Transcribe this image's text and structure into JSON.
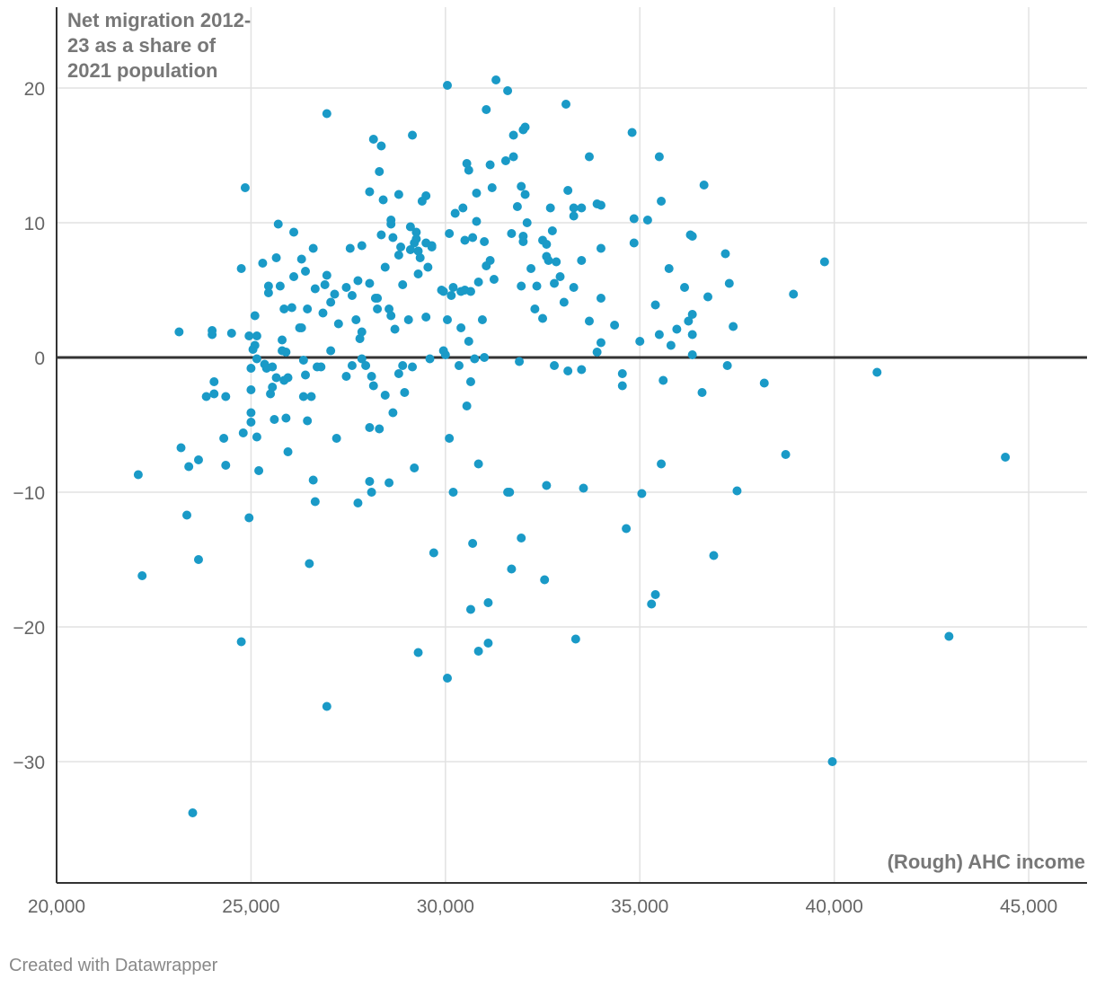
{
  "chart_data": {
    "type": "scatter",
    "ylabel_lines": [
      "Net migration 2012-",
      "23 as a share of",
      "2021 population"
    ],
    "xlabel": "(Rough) AHC income",
    "xlim": [
      20000,
      46500
    ],
    "ylim": [
      -39,
      26
    ],
    "x_ticks": [
      20000,
      25000,
      30000,
      35000,
      40000,
      45000
    ],
    "x_tick_labels": [
      "20,000",
      "25,000",
      "30,000",
      "35,000",
      "40,000",
      "45,000"
    ],
    "y_ticks": [
      20,
      10,
      0,
      -10,
      -20,
      -30
    ],
    "y_tick_labels": [
      "20",
      "10",
      "0",
      "−10",
      "−20",
      "−30"
    ],
    "point_color": "#1a9ac7",
    "zero_line_color": "#333333",
    "points": [
      [
        22100,
        -8.7
      ],
      [
        22200,
        -16.2
      ],
      [
        23150,
        1.9
      ],
      [
        23200,
        -6.7
      ],
      [
        23350,
        -11.7
      ],
      [
        23400,
        -8.1
      ],
      [
        23500,
        -33.8
      ],
      [
        23650,
        -15
      ],
      [
        23650,
        -7.6
      ],
      [
        23850,
        -2.9
      ],
      [
        24000,
        2
      ],
      [
        24000,
        1.7
      ],
      [
        24050,
        -2.7
      ],
      [
        24050,
        -1.8
      ],
      [
        24300,
        -6
      ],
      [
        24350,
        -8
      ],
      [
        24350,
        -2.9
      ],
      [
        24500,
        1.8
      ],
      [
        24750,
        6.6
      ],
      [
        24750,
        -21.1
      ],
      [
        24800,
        -5.6
      ],
      [
        24850,
        12.6
      ],
      [
        24950,
        -11.9
      ],
      [
        24950,
        1.6
      ],
      [
        25000,
        -0.8
      ],
      [
        25000,
        -2.4
      ],
      [
        25000,
        -4.1
      ],
      [
        25000,
        -4.8
      ],
      [
        25050,
        0.6
      ],
      [
        25100,
        0.9
      ],
      [
        25100,
        3.1
      ],
      [
        25150,
        -5.9
      ],
      [
        25150,
        -0.1
      ],
      [
        25150,
        1.6
      ],
      [
        25200,
        -8.4
      ],
      [
        25300,
        7
      ],
      [
        25350,
        -0.5
      ],
      [
        25400,
        -0.8
      ],
      [
        25450,
        5.3
      ],
      [
        25450,
        4.8
      ],
      [
        25500,
        -2.7
      ],
      [
        25550,
        -2.2
      ],
      [
        25550,
        -0.7
      ],
      [
        25600,
        -4.6
      ],
      [
        25650,
        -1.5
      ],
      [
        25650,
        7.4
      ],
      [
        25700,
        9.9
      ],
      [
        25750,
        5.3
      ],
      [
        25800,
        1.3
      ],
      [
        25800,
        0.5
      ],
      [
        25850,
        -1.7
      ],
      [
        25850,
        3.6
      ],
      [
        25900,
        -4.5
      ],
      [
        25900,
        0.4
      ],
      [
        25950,
        -7
      ],
      [
        25950,
        -1.5
      ],
      [
        26050,
        3.7
      ],
      [
        26100,
        9.3
      ],
      [
        26100,
        6
      ],
      [
        26250,
        2.2
      ],
      [
        26300,
        7.3
      ],
      [
        26300,
        2.2
      ],
      [
        26350,
        -2.9
      ],
      [
        26350,
        -0.2
      ],
      [
        26400,
        6.4
      ],
      [
        26400,
        -1.3
      ],
      [
        26450,
        3.6
      ],
      [
        26450,
        -4.7
      ],
      [
        26500,
        -15.3
      ],
      [
        26550,
        -2.9
      ],
      [
        26600,
        8.1
      ],
      [
        26600,
        -9.1
      ],
      [
        26650,
        -10.7
      ],
      [
        26650,
        5.1
      ],
      [
        26700,
        -0.7
      ],
      [
        26800,
        -0.7
      ],
      [
        26850,
        3.3
      ],
      [
        26900,
        5.4
      ],
      [
        26950,
        6.1
      ],
      [
        26950,
        18.1
      ],
      [
        26950,
        -25.9
      ],
      [
        27050,
        4.1
      ],
      [
        27050,
        0.5
      ],
      [
        27150,
        4.7
      ],
      [
        27200,
        -6
      ],
      [
        27250,
        2.5
      ],
      [
        27450,
        -1.4
      ],
      [
        27450,
        5.2
      ],
      [
        27550,
        8.1
      ],
      [
        27600,
        -0.6
      ],
      [
        27600,
        4.6
      ],
      [
        27700,
        2.8
      ],
      [
        27750,
        -10.8
      ],
      [
        27750,
        5.7
      ],
      [
        27800,
        1.4
      ],
      [
        27850,
        8.3
      ],
      [
        27850,
        1.9
      ],
      [
        27850,
        -0.1
      ],
      [
        27950,
        -0.6
      ],
      [
        28050,
        12.3
      ],
      [
        28050,
        5.5
      ],
      [
        28050,
        -5.2
      ],
      [
        28050,
        -9.2
      ],
      [
        28100,
        -1.4
      ],
      [
        28100,
        -10
      ],
      [
        28150,
        16.2
      ],
      [
        28150,
        -2.1
      ],
      [
        28200,
        4.4
      ],
      [
        28250,
        4.4
      ],
      [
        28250,
        3.6
      ],
      [
        28300,
        13.8
      ],
      [
        28300,
        -5.3
      ],
      [
        28350,
        15.7
      ],
      [
        28350,
        9.1
      ],
      [
        28400,
        11.7
      ],
      [
        28450,
        6.7
      ],
      [
        28450,
        -2.8
      ],
      [
        28550,
        3.6
      ],
      [
        28550,
        -9.3
      ],
      [
        28600,
        3.1
      ],
      [
        28600,
        9.9
      ],
      [
        28600,
        10.2
      ],
      [
        28650,
        8.9
      ],
      [
        28650,
        -4.1
      ],
      [
        28700,
        2.1
      ],
      [
        28800,
        7.6
      ],
      [
        28800,
        12.1
      ],
      [
        28800,
        -1.2
      ],
      [
        28850,
        8.2
      ],
      [
        28900,
        5.4
      ],
      [
        28900,
        -0.6
      ],
      [
        28950,
        -2.6
      ],
      [
        29050,
        2.8
      ],
      [
        29100,
        9.7
      ],
      [
        29100,
        8
      ],
      [
        29150,
        16.5
      ],
      [
        29150,
        -0.7
      ],
      [
        29200,
        -8.2
      ],
      [
        29200,
        8.5
      ],
      [
        29250,
        8.8
      ],
      [
        29250,
        9.3
      ],
      [
        29300,
        6.2
      ],
      [
        29300,
        -21.9
      ],
      [
        29300,
        7.9
      ],
      [
        29350,
        7.4
      ],
      [
        29400,
        11.6
      ],
      [
        29500,
        3
      ],
      [
        29500,
        12
      ],
      [
        29500,
        8.5
      ],
      [
        29550,
        6.7
      ],
      [
        29600,
        -0.1
      ],
      [
        29650,
        8.3
      ],
      [
        29650,
        8.2
      ],
      [
        29700,
        -14.5
      ],
      [
        29900,
        5
      ],
      [
        29950,
        0.5
      ],
      [
        29950,
        4.9
      ],
      [
        30000,
        0.2
      ],
      [
        30050,
        -23.8
      ],
      [
        30050,
        2.8
      ],
      [
        30050,
        20.2
      ],
      [
        30100,
        9.2
      ],
      [
        30100,
        -6
      ],
      [
        30150,
        4.6
      ],
      [
        30200,
        5.2
      ],
      [
        30200,
        -10
      ],
      [
        30250,
        10.7
      ],
      [
        30350,
        -0.6
      ],
      [
        30400,
        4.9
      ],
      [
        30400,
        2.2
      ],
      [
        30450,
        11.1
      ],
      [
        30500,
        8.7
      ],
      [
        30500,
        5
      ],
      [
        30550,
        14.4
      ],
      [
        30550,
        -3.6
      ],
      [
        30600,
        13.9
      ],
      [
        30600,
        1.2
      ],
      [
        30650,
        4.9
      ],
      [
        30650,
        -18.7
      ],
      [
        30650,
        -1.8
      ],
      [
        30700,
        8.9
      ],
      [
        30700,
        -13.8
      ],
      [
        30750,
        -0.1
      ],
      [
        30800,
        12.2
      ],
      [
        30800,
        10.1
      ],
      [
        30850,
        5.6
      ],
      [
        30850,
        -7.9
      ],
      [
        30850,
        -21.8
      ],
      [
        30950,
        2.8
      ],
      [
        31000,
        0
      ],
      [
        31000,
        8.6
      ],
      [
        31050,
        18.4
      ],
      [
        31050,
        6.8
      ],
      [
        31100,
        -18.2
      ],
      [
        31100,
        -21.2
      ],
      [
        31150,
        7.2
      ],
      [
        31150,
        14.3
      ],
      [
        31200,
        12.6
      ],
      [
        31250,
        5.8
      ],
      [
        31300,
        20.6
      ],
      [
        31550,
        14.6
      ],
      [
        31600,
        19.8
      ],
      [
        31600,
        -10
      ],
      [
        31650,
        -10
      ],
      [
        31700,
        9.2
      ],
      [
        31700,
        -15.7
      ],
      [
        31750,
        16.5
      ],
      [
        31750,
        14.9
      ],
      [
        31850,
        11.2
      ],
      [
        31900,
        -0.3
      ],
      [
        31950,
        12.7
      ],
      [
        31950,
        5.3
      ],
      [
        31950,
        -13.4
      ],
      [
        32000,
        8.6
      ],
      [
        32000,
        9
      ],
      [
        32000,
        16.9
      ],
      [
        32050,
        17.1
      ],
      [
        32050,
        12.1
      ],
      [
        32100,
        10
      ],
      [
        32200,
        6.6
      ],
      [
        32300,
        3.6
      ],
      [
        32350,
        5.3
      ],
      [
        32500,
        2.9
      ],
      [
        32500,
        8.7
      ],
      [
        32550,
        -16.5
      ],
      [
        32600,
        7.5
      ],
      [
        32600,
        8.4
      ],
      [
        32600,
        -9.5
      ],
      [
        32650,
        7.2
      ],
      [
        32700,
        11.1
      ],
      [
        32750,
        9.4
      ],
      [
        32800,
        5.5
      ],
      [
        32800,
        -0.6
      ],
      [
        32850,
        7.1
      ],
      [
        32950,
        6
      ],
      [
        33050,
        4.1
      ],
      [
        33100,
        18.8
      ],
      [
        33150,
        12.4
      ],
      [
        33150,
        -1
      ],
      [
        33300,
        11.1
      ],
      [
        33300,
        10.5
      ],
      [
        33300,
        5.2
      ],
      [
        33350,
        -20.9
      ],
      [
        33500,
        7.2
      ],
      [
        33500,
        11.1
      ],
      [
        33500,
        -0.9
      ],
      [
        33550,
        -9.7
      ],
      [
        33700,
        14.9
      ],
      [
        33700,
        2.7
      ],
      [
        33900,
        11.4
      ],
      [
        33900,
        0.4
      ],
      [
        34000,
        1.1
      ],
      [
        34000,
        11.3
      ],
      [
        34000,
        8.1
      ],
      [
        34000,
        4.4
      ],
      [
        34350,
        2.4
      ],
      [
        34550,
        -1.2
      ],
      [
        34550,
        -2.1
      ],
      [
        34650,
        -12.7
      ],
      [
        34800,
        16.7
      ],
      [
        34850,
        10.3
      ],
      [
        34850,
        8.5
      ],
      [
        35000,
        1.2
      ],
      [
        35050,
        -10.1
      ],
      [
        35200,
        10.2
      ],
      [
        35300,
        -18.3
      ],
      [
        35400,
        -17.6
      ],
      [
        35400,
        3.9
      ],
      [
        35500,
        14.9
      ],
      [
        35500,
        1.7
      ],
      [
        35550,
        -7.9
      ],
      [
        35550,
        11.6
      ],
      [
        35600,
        -1.7
      ],
      [
        35750,
        6.6
      ],
      [
        35800,
        0.9
      ],
      [
        35950,
        2.1
      ],
      [
        36150,
        5.2
      ],
      [
        36250,
        2.7
      ],
      [
        36300,
        9.1
      ],
      [
        36350,
        9
      ],
      [
        36350,
        3.2
      ],
      [
        36350,
        1.7
      ],
      [
        36350,
        0.2
      ],
      [
        36600,
        -2.6
      ],
      [
        36650,
        12.8
      ],
      [
        36750,
        4.5
      ],
      [
        36900,
        -14.7
      ],
      [
        37200,
        7.7
      ],
      [
        37250,
        -0.6
      ],
      [
        37300,
        5.5
      ],
      [
        37400,
        2.3
      ],
      [
        37500,
        -9.9
      ],
      [
        38200,
        -1.9
      ],
      [
        38750,
        -7.2
      ],
      [
        38950,
        4.7
      ],
      [
        39750,
        7.1
      ],
      [
        39950,
        -30
      ],
      [
        41100,
        -1.1
      ],
      [
        42950,
        -20.7
      ],
      [
        44400,
        -7.4
      ]
    ]
  },
  "footer": "Created with Datawrapper"
}
